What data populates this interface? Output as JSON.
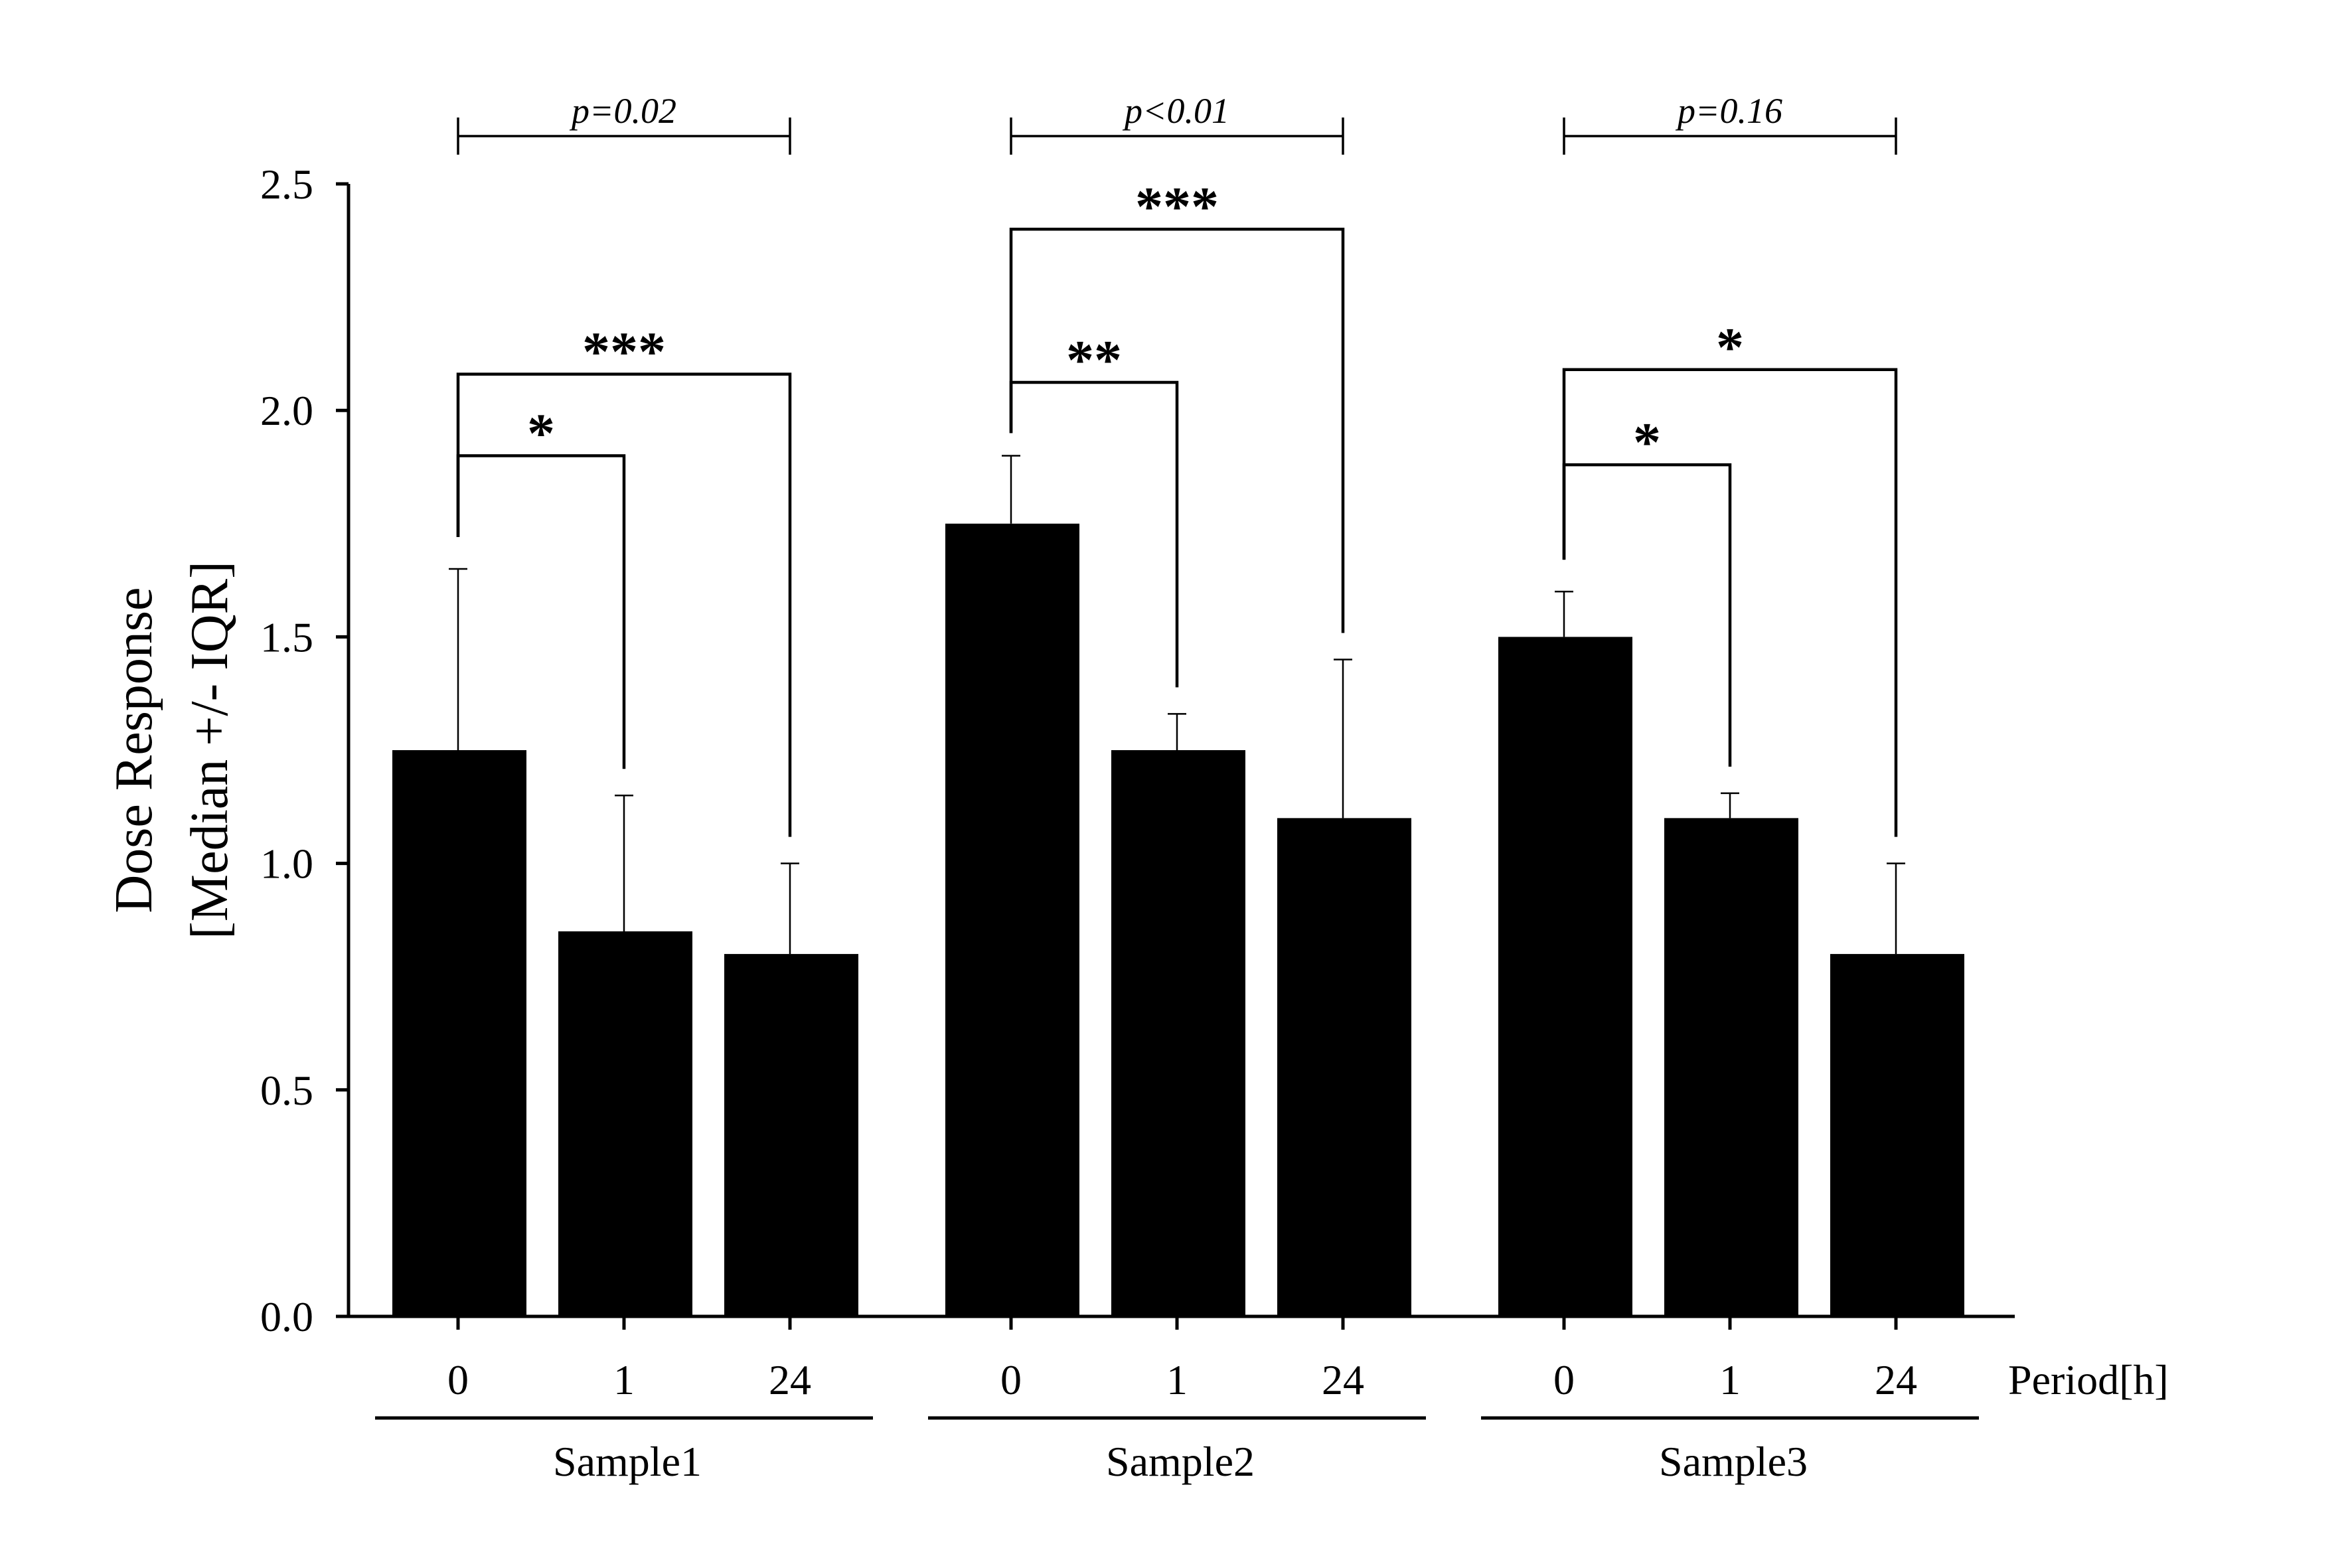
{
  "chart_data": {
    "type": "bar",
    "ylabel": "Dose Response",
    "ylabel2": "[Median +/- IQR]",
    "xlabel": "Period[h]",
    "ylim": [
      0,
      2.5
    ],
    "yticks": [
      "0.0",
      "0.5",
      "1.0",
      "1.5",
      "2.0",
      "2.5"
    ],
    "bar_color": "#000000",
    "groups": [
      {
        "name": "Sample1",
        "categories": [
          "0",
          "1",
          "24"
        ],
        "values": [
          1.25,
          0.85,
          0.8
        ],
        "iqr_upper": [
          1.65,
          1.15,
          1.0
        ],
        "overall_p": "p=0.02",
        "comparisons": [
          {
            "from": "0",
            "to": "1",
            "stars": "*"
          },
          {
            "from": "0",
            "to": "24",
            "stars": "***"
          }
        ]
      },
      {
        "name": "Sample2",
        "categories": [
          "0",
          "1",
          "24"
        ],
        "values": [
          1.75,
          1.25,
          1.1
        ],
        "iqr_upper": [
          1.9,
          1.33,
          1.45
        ],
        "overall_p": "p<0.01",
        "comparisons": [
          {
            "from": "0",
            "to": "1",
            "stars": "**"
          },
          {
            "from": "0",
            "to": "24",
            "stars": "***"
          }
        ]
      },
      {
        "name": "Sample3",
        "categories": [
          "0",
          "1",
          "24"
        ],
        "values": [
          1.5,
          1.1,
          0.8
        ],
        "iqr_upper": [
          1.6,
          1.155,
          1.0
        ],
        "overall_p": "p=0.16",
        "comparisons": [
          {
            "from": "0",
            "to": "1",
            "stars": "*"
          },
          {
            "from": "0",
            "to": "24",
            "stars": "*"
          }
        ]
      }
    ]
  }
}
